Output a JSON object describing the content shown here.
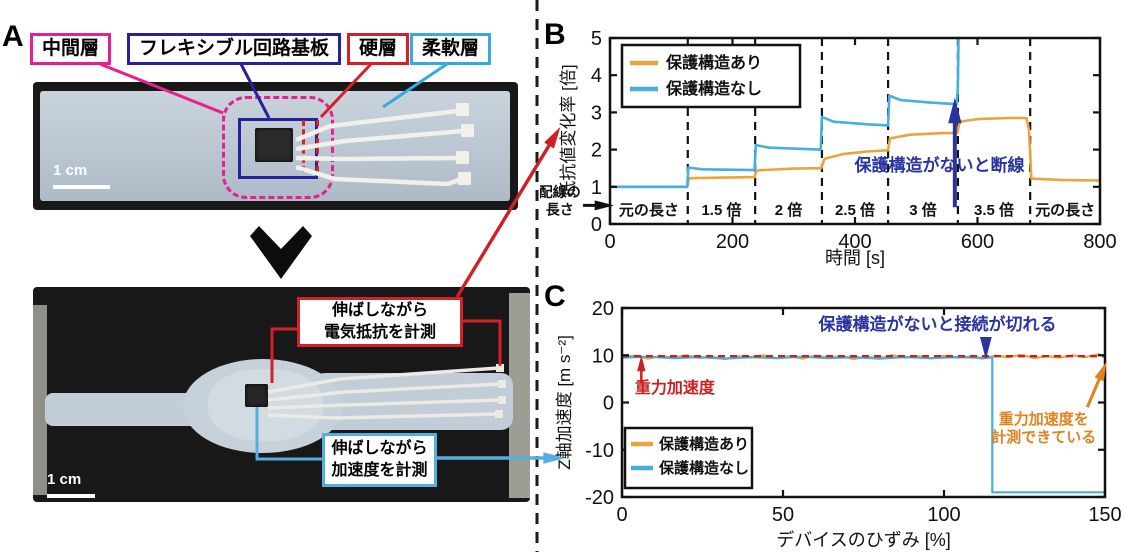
{
  "figure": {
    "panel_a_label": "A",
    "panel_b_label": "B",
    "panel_c_label": "C",
    "colors": {
      "with_protection_line": "#e9a43c",
      "without_protection_line": "#45b0dc",
      "gravity_reference": "#cc2020",
      "break_annotation": "#2a34a0",
      "middle_layer_box": "#ea1e8c",
      "flexible_board_box": "#26219c",
      "hard_layer_box": "#d62027",
      "soft_layer_box": "#36a9e1"
    }
  },
  "panel_a": {
    "layer_labels": [
      {
        "text": "中間層",
        "color": "#ea1e8c"
      },
      {
        "text": "フレキシブル回路基板",
        "color": "#26219c"
      },
      {
        "text": "硬層",
        "color": "#d62027"
      },
      {
        "text": "柔軟層",
        "color": "#36a9e1"
      }
    ],
    "photo_top": {
      "scale_bar": "1 cm"
    },
    "photo_bottom": {
      "scale_bar": "1 cm"
    },
    "callouts": [
      {
        "text": "伸ばしながら\n電気抵抗を計測",
        "color": "#d62027"
      },
      {
        "text": "伸ばしながら\n加速度を計測",
        "color": "#54aee0"
      }
    ]
  },
  "chart_data": [
    {
      "id": "b",
      "type": "line",
      "title": "",
      "xlabel": "時間 [s]",
      "ylabel": "抵抗値変化率 [倍]",
      "xlim": [
        0,
        800
      ],
      "ylim": [
        0,
        5
      ],
      "xticks": [
        0,
        200,
        400,
        600,
        800
      ],
      "yticks": [
        0,
        1,
        2,
        3,
        4,
        5
      ],
      "region_boundaries": [
        127,
        237,
        346,
        454,
        568,
        686
      ],
      "region_labels": [
        "元の長さ",
        "1.5 倍",
        "2 倍",
        "2.5 倍",
        "3 倍",
        "3.5 倍",
        "元の長さ"
      ],
      "legend": {
        "position": "upper-left",
        "entries": [
          {
            "label": "保護構造あり",
            "color": "#e9a43c"
          },
          {
            "label": "保護構造なし",
            "color": "#45b0dc"
          }
        ]
      },
      "series": [
        {
          "name": "保護構造あり",
          "color": "#e9a43c",
          "width": 2.6,
          "points": [
            [
              0,
              1
            ],
            [
              126,
              1
            ],
            [
              129,
              1.23
            ],
            [
              236,
              1.26
            ],
            [
              239,
              1.44
            ],
            [
              300,
              1.49
            ],
            [
              345,
              1.5
            ],
            [
              350,
              1.75
            ],
            [
              380,
              1.88
            ],
            [
              420,
              1.95
            ],
            [
              454,
              1.98
            ],
            [
              457,
              2.3
            ],
            [
              490,
              2.4
            ],
            [
              540,
              2.44
            ],
            [
              567,
              2.45
            ],
            [
              571,
              2.75
            ],
            [
              600,
              2.82
            ],
            [
              650,
              2.85
            ],
            [
              680,
              2.85
            ],
            [
              684,
              2.55
            ],
            [
              688,
              1.22
            ],
            [
              740,
              1.18
            ],
            [
              800,
              1.17
            ]
          ]
        },
        {
          "name": "保護構造なし",
          "color": "#45b0dc",
          "width": 2.6,
          "points": [
            [
              0,
              1
            ],
            [
              126,
              1
            ],
            [
              128,
              1.52
            ],
            [
              150,
              1.47
            ],
            [
              236,
              1.45
            ],
            [
              238,
              2.12
            ],
            [
              260,
              2.05
            ],
            [
              344,
              2.0
            ],
            [
              346,
              2.88
            ],
            [
              365,
              2.75
            ],
            [
              420,
              2.68
            ],
            [
              454,
              2.65
            ],
            [
              456,
              3.45
            ],
            [
              475,
              3.33
            ],
            [
              520,
              3.27
            ],
            [
              566,
              3.22
            ],
            [
              568,
              3.7
            ],
            [
              569,
              5.0
            ]
          ]
        }
      ],
      "annotations": [
        {
          "text": "保護構造がないと断線",
          "color": "#2a34a0",
          "x": 538,
          "y": 1.43,
          "size": 17,
          "anchor": "middle",
          "bold": true
        },
        {
          "text": "配線の\n長さ",
          "color": "#111111",
          "x": -82,
          "y": 0.72,
          "size": 14,
          "anchor": "middle",
          "bold": true
        }
      ],
      "arrows": [
        {
          "x1": 563,
          "y1": 0.45,
          "x2": 563,
          "y2": 2.95,
          "color": "#2a34a0",
          "width": 4
        },
        {
          "x1": -44,
          "y1": 0.5,
          "x2": -14,
          "y2": 0.5,
          "color": "#111111",
          "width": 3
        }
      ]
    },
    {
      "id": "c",
      "type": "line",
      "title": "",
      "xlabel": "デバイスのひずみ [%]",
      "ylabel": "Z軸加速度 [m s⁻²]",
      "xlim": [
        0,
        150
      ],
      "ylim": [
        -20,
        20
      ],
      "xticks": [
        0,
        50,
        100,
        150
      ],
      "yticks": [
        -20,
        -10,
        0,
        10,
        20
      ],
      "legend": {
        "position": "lower-left",
        "entries": [
          {
            "label": "保護構造あり",
            "color": "#e9a43c"
          },
          {
            "label": "保護構造なし",
            "color": "#45b0dc"
          }
        ]
      },
      "series": [
        {
          "name": "保護構造あり",
          "color": "#e9a43c",
          "width": 2.2,
          "points": [
            [
              0,
              9.6
            ],
            [
              4,
              9.9
            ],
            [
              8,
              9.3
            ],
            [
              12,
              9.8
            ],
            [
              16,
              9.5
            ],
            [
              20,
              10.0
            ],
            [
              24,
              9.4
            ],
            [
              28,
              9.7
            ],
            [
              32,
              9.2
            ],
            [
              36,
              9.8
            ],
            [
              40,
              9.5
            ],
            [
              44,
              10.0
            ],
            [
              48,
              9.4
            ],
            [
              52,
              9.8
            ],
            [
              56,
              9.3
            ],
            [
              60,
              9.9
            ],
            [
              64,
              9.5
            ],
            [
              68,
              9.8
            ],
            [
              72,
              9.2
            ],
            [
              76,
              9.7
            ],
            [
              80,
              9.4
            ],
            [
              84,
              10.0
            ],
            [
              88,
              9.5
            ],
            [
              92,
              9.8
            ],
            [
              96,
              9.3
            ],
            [
              100,
              9.9
            ],
            [
              104,
              9.5
            ],
            [
              108,
              9.7
            ],
            [
              112,
              9.3
            ],
            [
              116,
              9.9
            ],
            [
              120,
              9.6
            ],
            [
              124,
              10.1
            ],
            [
              128,
              9.4
            ],
            [
              132,
              9.8
            ],
            [
              136,
              9.5
            ],
            [
              140,
              10.0
            ],
            [
              144,
              9.6
            ],
            [
              148,
              10.2
            ],
            [
              150,
              9.8
            ]
          ]
        },
        {
          "name": "保護構造なし",
          "color": "#45b0dc",
          "width": 2.2,
          "points": [
            [
              0,
              9.5
            ],
            [
              8,
              9.7
            ],
            [
              16,
              9.4
            ],
            [
              24,
              9.6
            ],
            [
              32,
              9.3
            ],
            [
              40,
              9.6
            ],
            [
              48,
              9.4
            ],
            [
              56,
              9.7
            ],
            [
              64,
              9.4
            ],
            [
              72,
              9.6
            ],
            [
              80,
              9.3
            ],
            [
              88,
              9.6
            ],
            [
              96,
              9.4
            ],
            [
              104,
              9.6
            ],
            [
              110,
              9.5
            ],
            [
              115,
              9.5
            ],
            [
              115,
              -19
            ],
            [
              150,
              -19
            ]
          ]
        },
        {
          "name": "重力加速度基準線",
          "color": "#cc2020",
          "width": 2.4,
          "dash": "7,5",
          "points": [
            [
              0,
              9.8
            ],
            [
              150,
              9.8
            ]
          ]
        }
      ],
      "annotations": [
        {
          "text": "保護構造がないと接続が切れる",
          "color": "#2a34a0",
          "x": 98,
          "y": 15.3,
          "size": 17,
          "anchor": "middle",
          "bold": true
        },
        {
          "text": "重力加速度",
          "color": "#cc2020",
          "x": 4,
          "y": 2.0,
          "size": 16,
          "anchor": "start",
          "bold": true
        },
        {
          "text": "重力加速度を\n計測できている",
          "color": "#e0821e",
          "x": 131,
          "y": -4.5,
          "size": 15,
          "anchor": "middle",
          "bold": true
        }
      ],
      "arrows": [
        {
          "x1": 113,
          "y1": 13.6,
          "x2": 113,
          "y2": 12.2,
          "color": "#2a34a0",
          "width": 3.5
        },
        {
          "x1": 6,
          "y1": 4.0,
          "x2": 6,
          "y2": 7.8,
          "color": "#cc2020",
          "width": 2.5
        },
        {
          "x1": 144.5,
          "y1": -1.0,
          "x2": 149,
          "y2": 6.2,
          "color": "#e0821e",
          "width": 3
        }
      ]
    }
  ]
}
